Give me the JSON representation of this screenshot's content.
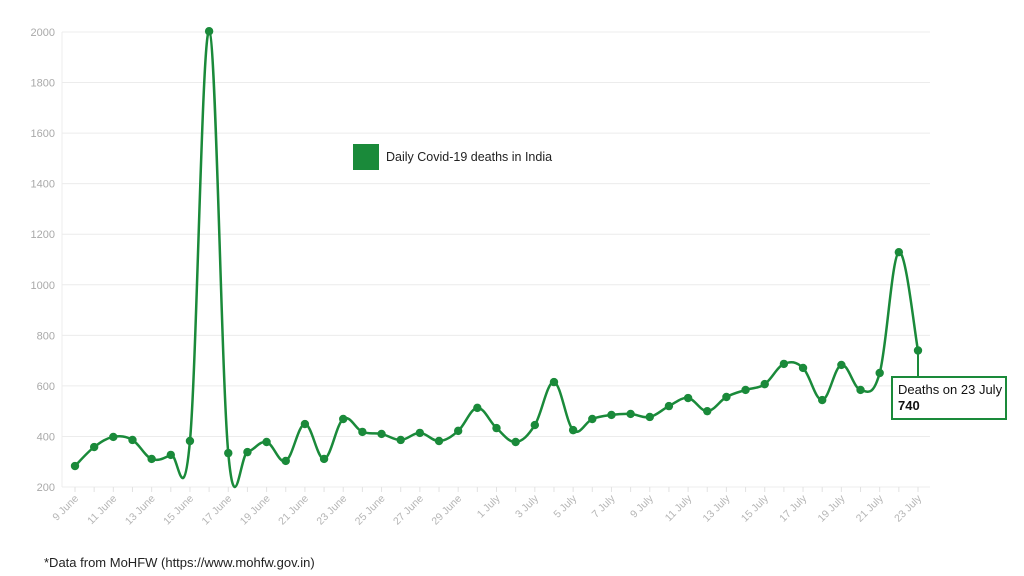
{
  "chart_data": {
    "type": "line",
    "title": "",
    "xlabel": "",
    "ylabel": "",
    "ylim": [
      200,
      2000
    ],
    "yticks": [
      200,
      400,
      600,
      800,
      1000,
      1200,
      1400,
      1600,
      1800,
      2000
    ],
    "grid": true,
    "legend_position": "top-center",
    "x": [
      "9 June",
      "10 June",
      "11 June",
      "12 June",
      "13 June",
      "14 June",
      "15 June",
      "16 June",
      "17 June",
      "18 June",
      "19 June",
      "20 June",
      "21 June",
      "22 June",
      "23 June",
      "24 June",
      "25 June",
      "26 June",
      "27 June",
      "28 June",
      "29 June",
      "30 June",
      "1 July",
      "2 July",
      "3 July",
      "4 July",
      "5 July",
      "6 July",
      "7 July",
      "8 July",
      "9 July",
      "10 July",
      "11 July",
      "12 July",
      "13 July",
      "14 July",
      "15 July",
      "16 July",
      "17 July",
      "18 July",
      "19 July",
      "20 July",
      "21 July",
      "22 July",
      "23 July"
    ],
    "xtick_labels": [
      "9 June",
      "11 June",
      "13 June",
      "15 June",
      "17 June",
      "19 June",
      "21 June",
      "23 June",
      "25 June",
      "27 June",
      "29 June",
      "1 July",
      "3 July",
      "5 July",
      "7 July",
      "9 July",
      "11 July",
      "13 July",
      "15 July",
      "17 July",
      "19 July",
      "21 July",
      "23 July"
    ],
    "series": [
      {
        "name": "Daily Covid-19 deaths in India",
        "color": "#1a8a3a",
        "values": [
          283,
          358,
          398,
          386,
          311,
          327,
          382,
          2003,
          334,
          338,
          378,
          303,
          449,
          311,
          469,
          418,
          410,
          386,
          414,
          382,
          422,
          513,
          433,
          378,
          445,
          615,
          425,
          469,
          485,
          489,
          477,
          520,
          552,
          500,
          556,
          584,
          607,
          687,
          671,
          544,
          683,
          584,
          651,
          1129,
          740
        ]
      }
    ],
    "annotations": [
      {
        "x": "23 July",
        "text": "Deaths on 23 July",
        "value": "740"
      }
    ]
  },
  "legend": {
    "label": "Daily Covid-19 deaths in India",
    "color": "#1a8a3a"
  },
  "tooltip": {
    "title": "Deaths on 23 July",
    "value": "740"
  },
  "footnote": "*Data from MoHFW (https://www.mohfw.gov.in)"
}
